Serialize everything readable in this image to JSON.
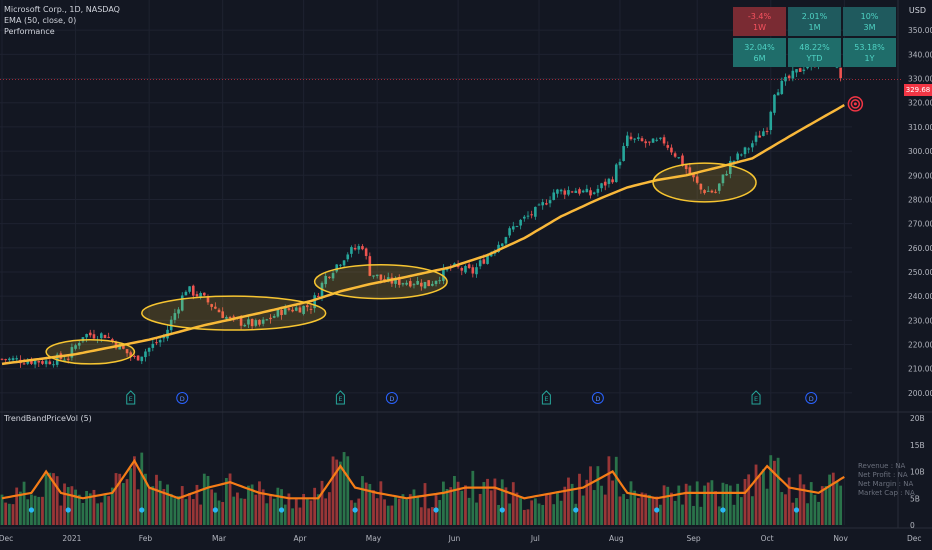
{
  "legend": {
    "symbol": "Microsoft Corp., 1D, NASDAQ",
    "ema": "EMA (50, close, 0)",
    "performance": "Performance"
  },
  "currency": "USD",
  "last_price_label": "329.68",
  "indicator_label": "TrendBandPriceVol (5)",
  "fundamentals": [
    "Revenue : NA",
    "Net Profit : NA",
    "Net Margin : NA",
    "Market Cap : NA"
  ],
  "performance": [
    {
      "value": "-3.4%",
      "period": "1W",
      "color": "#7a2b33"
    },
    {
      "value": "2.01%",
      "period": "1M",
      "color": "#1f5a5e"
    },
    {
      "value": "10%",
      "period": "3M",
      "color": "#1f5a5e"
    },
    {
      "value": "32.04%",
      "period": "6M",
      "color": "#1f6d6a"
    },
    {
      "value": "48.22%",
      "period": "YTD",
      "color": "#1f6d6a"
    },
    {
      "value": "53.18%",
      "period": "1Y",
      "color": "#1f6d6a"
    }
  ],
  "colors": {
    "up": "#26a69a",
    "down": "#ef5350",
    "ema": "#f9b83a",
    "ellipse": "#f7c531",
    "volume_line": "#f57c17",
    "dot": "#29b6f6"
  },
  "chart_data": {
    "type": "candlestick",
    "title": "Microsoft Corp., 1D, NASDAQ",
    "ylim": [
      195,
      360
    ],
    "y_ticks": [
      200,
      210,
      220,
      230,
      240,
      250,
      260,
      270,
      280,
      290,
      300,
      310,
      320,
      330,
      340,
      350
    ],
    "y_tick_labels": [
      "200.00",
      "210.00",
      "220.00",
      "230.00",
      "240.00",
      "250.00",
      "260.00",
      "270.00",
      "280.00",
      "290.00",
      "300.00",
      "310.00",
      "320.00",
      "330.00",
      "340.00",
      "350.00"
    ],
    "x_ticks": [
      "Dec",
      "2021",
      "Feb",
      "Mar",
      "Apr",
      "May",
      "Jun",
      "Jul",
      "Aug",
      "Sep",
      "Oct",
      "Nov",
      "Dec"
    ],
    "last_price": 329.68,
    "price_path": [
      [
        0,
        214
      ],
      [
        12,
        213
      ],
      [
        18,
        215
      ],
      [
        22,
        224
      ],
      [
        28,
        224
      ],
      [
        32,
        219
      ],
      [
        36,
        214
      ],
      [
        44,
        223
      ],
      [
        50,
        243
      ],
      [
        54,
        240
      ],
      [
        58,
        235
      ],
      [
        62,
        230
      ],
      [
        70,
        228
      ],
      [
        76,
        234
      ],
      [
        84,
        236
      ],
      [
        88,
        248
      ],
      [
        94,
        258
      ],
      [
        98,
        261
      ],
      [
        100,
        250
      ],
      [
        104,
        246
      ],
      [
        112,
        246
      ],
      [
        116,
        245
      ],
      [
        122,
        252
      ],
      [
        128,
        250
      ],
      [
        132,
        257
      ],
      [
        140,
        270
      ],
      [
        146,
        276
      ],
      [
        150,
        283
      ],
      [
        156,
        284
      ],
      [
        160,
        282
      ],
      [
        166,
        289
      ],
      [
        170,
        305
      ],
      [
        176,
        303
      ],
      [
        180,
        304
      ],
      [
        184,
        297
      ],
      [
        190,
        284
      ],
      [
        194,
        283
      ],
      [
        198,
        295
      ],
      [
        202,
        300
      ],
      [
        208,
        310
      ],
      [
        210,
        325
      ],
      [
        214,
        330
      ],
      [
        218,
        335
      ],
      [
        222,
        337
      ],
      [
        225,
        339
      ],
      [
        228,
        331
      ]
    ],
    "ema_path": [
      [
        0,
        212
      ],
      [
        20,
        216
      ],
      [
        40,
        222
      ],
      [
        55,
        228
      ],
      [
        70,
        233
      ],
      [
        84,
        238
      ],
      [
        92,
        242
      ],
      [
        100,
        245
      ],
      [
        110,
        248
      ],
      [
        122,
        252
      ],
      [
        132,
        257
      ],
      [
        142,
        264
      ],
      [
        152,
        273
      ],
      [
        162,
        280
      ],
      [
        170,
        285
      ],
      [
        178,
        288
      ],
      [
        186,
        290
      ],
      [
        194,
        293
      ],
      [
        204,
        297
      ],
      [
        214,
        306
      ],
      [
        222,
        313
      ],
      [
        229,
        319
      ]
    ],
    "ellipses": [
      {
        "x_day": 24,
        "y_price": 217,
        "rx": 12,
        "ry": 5
      },
      {
        "x_day": 63,
        "y_price": 233,
        "rx": 25,
        "ry": 7
      },
      {
        "x_day": 103,
        "y_price": 246,
        "rx": 18,
        "ry": 7
      },
      {
        "x_day": 191,
        "y_price": 287,
        "rx": 14,
        "ry": 8
      }
    ],
    "event_markers": [
      {
        "x_day": 35,
        "label": "E"
      },
      {
        "x_day": 49,
        "label": "D"
      },
      {
        "x_day": 92,
        "label": "E"
      },
      {
        "x_day": 106,
        "label": "D"
      },
      {
        "x_day": 148,
        "label": "E"
      },
      {
        "x_day": 162,
        "label": "D"
      },
      {
        "x_day": 205,
        "label": "E"
      },
      {
        "x_day": 220,
        "label": "D"
      }
    ],
    "volume_ylim": [
      0,
      20
    ],
    "volume_ticks": [
      0,
      5,
      10,
      15,
      20
    ],
    "volume_tick_labels": [
      "0",
      "5B",
      "10B",
      "15B",
      "20B"
    ],
    "volume_path": [
      [
        0,
        5
      ],
      [
        8,
        6
      ],
      [
        12,
        10
      ],
      [
        16,
        6
      ],
      [
        22,
        5
      ],
      [
        30,
        6
      ],
      [
        36,
        12
      ],
      [
        40,
        7
      ],
      [
        48,
        5
      ],
      [
        56,
        7
      ],
      [
        62,
        8
      ],
      [
        70,
        6
      ],
      [
        78,
        5
      ],
      [
        86,
        5
      ],
      [
        92,
        11
      ],
      [
        96,
        7
      ],
      [
        102,
        6
      ],
      [
        110,
        5
      ],
      [
        120,
        6
      ],
      [
        126,
        7
      ],
      [
        134,
        7
      ],
      [
        142,
        5
      ],
      [
        150,
        6
      ],
      [
        158,
        7
      ],
      [
        166,
        10
      ],
      [
        170,
        6
      ],
      [
        178,
        5
      ],
      [
        186,
        6
      ],
      [
        194,
        6
      ],
      [
        202,
        6
      ],
      [
        208,
        11
      ],
      [
        214,
        7
      ],
      [
        222,
        6
      ],
      [
        229,
        9
      ]
    ]
  }
}
